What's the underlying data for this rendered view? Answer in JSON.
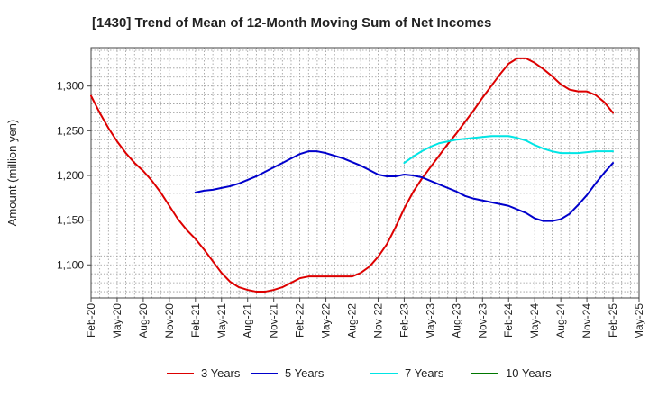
{
  "chart_data": {
    "type": "line",
    "title": "[1430]  Trend of Mean of 12-Month Moving Sum of Net Incomes",
    "xlabel": "",
    "ylabel": "Amount (million yen)",
    "x_ticks": [
      "Feb-20",
      "May-20",
      "Aug-20",
      "Nov-20",
      "Feb-21",
      "May-21",
      "Aug-21",
      "Nov-21",
      "Feb-22",
      "May-22",
      "Aug-22",
      "Nov-22",
      "Feb-23",
      "May-23",
      "Aug-23",
      "Nov-23",
      "Feb-24",
      "May-24",
      "Aug-24",
      "Nov-24",
      "Feb-25",
      "May-25"
    ],
    "y_ticks": [
      "1,100",
      "1,150",
      "1,200",
      "1,250",
      "1,300"
    ],
    "y_tick_values": [
      1100,
      1150,
      1200,
      1250,
      1300
    ],
    "ylim": [
      1063,
      1343
    ],
    "xlim": [
      "2020-02",
      "2025-05"
    ],
    "grid": true,
    "legend_position": "bottom",
    "series": [
      {
        "name": "3 Years",
        "color": "#dd0000",
        "x": [
          "2020-02",
          "2020-03",
          "2020-04",
          "2020-05",
          "2020-06",
          "2020-07",
          "2020-08",
          "2020-09",
          "2020-10",
          "2020-11",
          "2020-12",
          "2021-01",
          "2021-02",
          "2021-03",
          "2021-04",
          "2021-05",
          "2021-06",
          "2021-07",
          "2021-08",
          "2021-09",
          "2021-10",
          "2021-11",
          "2021-12",
          "2022-01",
          "2022-02",
          "2022-03",
          "2022-04",
          "2022-05",
          "2022-06",
          "2022-07",
          "2022-08",
          "2022-09",
          "2022-10",
          "2022-11",
          "2022-12",
          "2023-01",
          "2023-02",
          "2023-03",
          "2023-04",
          "2023-05",
          "2023-06",
          "2023-07",
          "2023-08",
          "2023-09",
          "2023-10",
          "2023-11",
          "2023-12",
          "2024-01",
          "2024-02",
          "2024-03",
          "2024-04",
          "2024-05",
          "2024-06",
          "2024-07",
          "2024-08",
          "2024-09",
          "2024-10",
          "2024-11",
          "2024-12",
          "2025-01",
          "2025-02"
        ],
        "values": [
          1289,
          1270,
          1253,
          1238,
          1225,
          1214,
          1205,
          1194,
          1181,
          1166,
          1151,
          1139,
          1129,
          1117,
          1104,
          1091,
          1081,
          1075,
          1072,
          1070,
          1070,
          1072,
          1075,
          1080,
          1085,
          1087,
          1087,
          1087,
          1087,
          1087,
          1087,
          1091,
          1098,
          1109,
          1123,
          1142,
          1163,
          1181,
          1196,
          1209,
          1222,
          1235,
          1247,
          1260,
          1273,
          1287,
          1300,
          1313,
          1325,
          1331,
          1331,
          1326,
          1319,
          1311,
          1302,
          1296,
          1294,
          1294,
          1290,
          1282,
          1270
        ]
      },
      {
        "name": "5 Years",
        "color": "#0000cc",
        "x": [
          "2021-02",
          "2021-03",
          "2021-04",
          "2021-05",
          "2021-06",
          "2021-07",
          "2021-08",
          "2021-09",
          "2021-10",
          "2021-11",
          "2021-12",
          "2022-01",
          "2022-02",
          "2022-03",
          "2022-04",
          "2022-05",
          "2022-06",
          "2022-07",
          "2022-08",
          "2022-09",
          "2022-10",
          "2022-11",
          "2022-12",
          "2023-01",
          "2023-02",
          "2023-03",
          "2023-04",
          "2023-05",
          "2023-06",
          "2023-07",
          "2023-08",
          "2023-09",
          "2023-10",
          "2023-11",
          "2023-12",
          "2024-01",
          "2024-02",
          "2024-03",
          "2024-04",
          "2024-05",
          "2024-06",
          "2024-07",
          "2024-08",
          "2024-09",
          "2024-10",
          "2024-11",
          "2024-12",
          "2025-01",
          "2025-02"
        ],
        "values": [
          1181,
          1183,
          1184,
          1186,
          1188,
          1191,
          1195,
          1199,
          1204,
          1209,
          1214,
          1219,
          1224,
          1227,
          1227,
          1225,
          1222,
          1219,
          1215,
          1211,
          1206,
          1201,
          1199,
          1199,
          1201,
          1200,
          1198,
          1194,
          1190,
          1186,
          1182,
          1177,
          1174,
          1172,
          1170,
          1168,
          1166,
          1162,
          1158,
          1152,
          1149,
          1149,
          1151,
          1157,
          1167,
          1178,
          1191,
          1203,
          1214
        ]
      },
      {
        "name": "7 Years",
        "color": "#00e5e5",
        "x": [
          "2023-02",
          "2023-03",
          "2023-04",
          "2023-05",
          "2023-06",
          "2023-07",
          "2023-08",
          "2023-09",
          "2023-10",
          "2023-11",
          "2023-12",
          "2024-01",
          "2024-02",
          "2024-03",
          "2024-04",
          "2024-05",
          "2024-06",
          "2024-07",
          "2024-08",
          "2024-09",
          "2024-10",
          "2024-11",
          "2024-12",
          "2025-01",
          "2025-02"
        ],
        "values": [
          1214,
          1221,
          1227,
          1232,
          1236,
          1238,
          1240,
          1241,
          1242,
          1243,
          1244,
          1244,
          1244,
          1242,
          1239,
          1234,
          1230,
          1227,
          1225,
          1225,
          1225,
          1226,
          1227,
          1227,
          1227
        ]
      },
      {
        "name": "10 Years",
        "color": "#007700",
        "x": [],
        "values": []
      }
    ]
  }
}
